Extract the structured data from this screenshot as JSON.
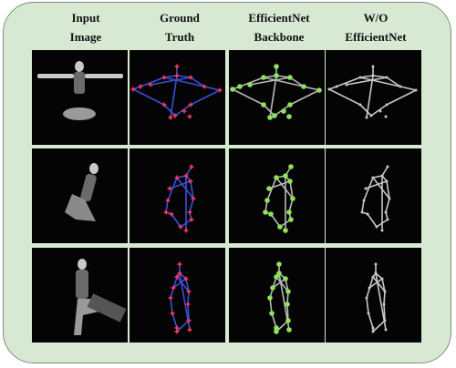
{
  "figure": {
    "columns": [
      {
        "line1": "Input",
        "line2": "Image"
      },
      {
        "line1": "Ground",
        "line2": "Truth"
      },
      {
        "line1": "EfficientNet",
        "line2": "Backbone"
      },
      {
        "line1": "W/O",
        "line2": "EfficientNet"
      }
    ],
    "rows": [
      {
        "pose": "seated-arms-outstretched"
      },
      {
        "pose": "seated-knees-bent"
      },
      {
        "pose": "seated-on-stool"
      }
    ]
  },
  "colors": {
    "panel_background": "#d7e9d3",
    "panel_border": "#7f8f7c",
    "image_background": "#040404",
    "ground_truth_bone": "#3b4fd8",
    "ground_truth_joint": "#ff3b5c",
    "efficientnet_bone": "#b9b9b9",
    "efficientnet_joint": "#8fe35a",
    "without_efficientnet_bone": "#c8c8c8"
  }
}
